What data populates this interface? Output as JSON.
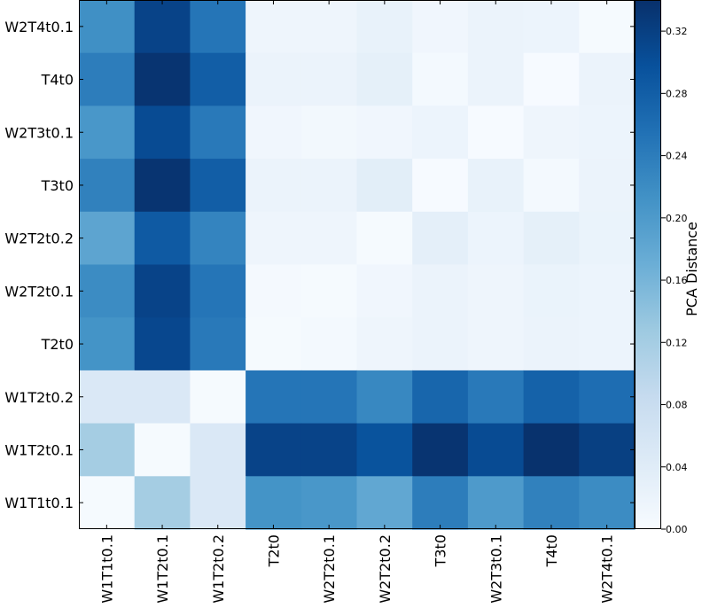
{
  "chart_data": {
    "type": "heatmap",
    "x_categories": [
      "W1T1t0.1",
      "W1T2t0.1",
      "W1T2t0.2",
      "T2t0",
      "W2T2t0.1",
      "W2T2t0.2",
      "T3t0",
      "W2T3t0.1",
      "T4t0",
      "W2T4t0.1"
    ],
    "y_categories": [
      "W2T4t0.1",
      "T4t0",
      "W2T3t0.1",
      "T3t0",
      "W2T2t0.2",
      "W2T2t0.1",
      "T2t0",
      "W1T2t0.2",
      "W1T2t0.1",
      "W1T1t0.1"
    ],
    "rows": [
      [
        0.215,
        0.315,
        0.25,
        0.015,
        0.015,
        0.025,
        0.012,
        0.02,
        0.018,
        0.003
      ],
      [
        0.24,
        0.335,
        0.28,
        0.02,
        0.02,
        0.03,
        0.006,
        0.02,
        0.002,
        0.02
      ],
      [
        0.205,
        0.305,
        0.245,
        0.012,
        0.008,
        0.012,
        0.018,
        0.002,
        0.015,
        0.018
      ],
      [
        0.235,
        0.335,
        0.28,
        0.02,
        0.02,
        0.035,
        0.002,
        0.025,
        0.006,
        0.02
      ],
      [
        0.185,
        0.285,
        0.23,
        0.015,
        0.015,
        0.003,
        0.032,
        0.018,
        0.03,
        0.022
      ],
      [
        0.22,
        0.315,
        0.25,
        0.005,
        0.003,
        0.012,
        0.02,
        0.015,
        0.022,
        0.018
      ],
      [
        0.21,
        0.31,
        0.245,
        0.003,
        0.006,
        0.015,
        0.02,
        0.015,
        0.02,
        0.018
      ],
      [
        0.05,
        0.05,
        0.003,
        0.25,
        0.25,
        0.225,
        0.27,
        0.245,
        0.275,
        0.26
      ],
      [
        0.12,
        0.003,
        0.05,
        0.315,
        0.315,
        0.295,
        0.335,
        0.305,
        0.338,
        0.32
      ],
      [
        0.003,
        0.12,
        0.05,
        0.21,
        0.205,
        0.18,
        0.24,
        0.2,
        0.235,
        0.22
      ]
    ],
    "colorbar": {
      "label": "PCA Distance",
      "min": 0.0,
      "max": 0.34,
      "ticks": [
        0.0,
        0.04,
        0.08,
        0.12,
        0.16,
        0.2,
        0.24,
        0.28,
        0.32
      ],
      "tick_labels": [
        "0.00",
        "0.04",
        "0.08",
        "0.12",
        "0.16",
        "0.20",
        "0.24",
        "0.28",
        "0.32"
      ]
    },
    "colormap": [
      "#f7fbff",
      "#deebf7",
      "#c6dbef",
      "#9ecae1",
      "#6baed6",
      "#4292c6",
      "#2171b5",
      "#08519c",
      "#08306b"
    ],
    "grid": false,
    "title": "",
    "xlabel": "",
    "ylabel": ""
  }
}
